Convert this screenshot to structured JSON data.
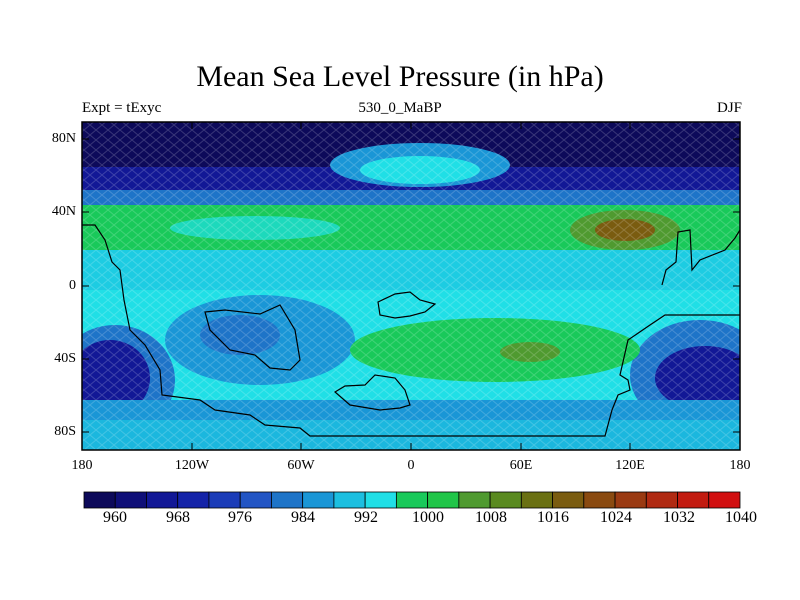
{
  "title": "Mean Sea Level Pressure (in hPa)",
  "subtitle_left": "Expt = tExyc",
  "subtitle_center": "530_0_MaBP",
  "subtitle_right": "DJF",
  "lat_ticks": [
    "80N",
    "40N",
    "0",
    "40S",
    "80S"
  ],
  "lon_ticks": [
    "180",
    "120W",
    "60W",
    "0",
    "60E",
    "120E",
    "180"
  ],
  "colorbar": {
    "labels": [
      "960",
      "968",
      "976",
      "984",
      "992",
      "1000",
      "1008",
      "1016",
      "1024",
      "1032",
      "1040"
    ],
    "colors": [
      "#0d0a5a",
      "#0f0f78",
      "#121896",
      "#1423a8",
      "#1b3cb8",
      "#2255c4",
      "#1e74c8",
      "#1a96d6",
      "#1cbfe0",
      "#20dfe6",
      "#19c95a",
      "#20c548",
      "#4f9a30",
      "#5a8a20",
      "#6a7012",
      "#7a5c10",
      "#8a4a10",
      "#9a3a12",
      "#b02a12",
      "#c21b10",
      "#d10f10"
    ]
  },
  "colors": {
    "deep_low": "#0f0f78",
    "low": "#2255c4",
    "mid_low": "#1a96d6",
    "cyan": "#20dfe6",
    "green": "#19c95a",
    "brown": "#7a5c10",
    "coast": "#000000"
  }
}
